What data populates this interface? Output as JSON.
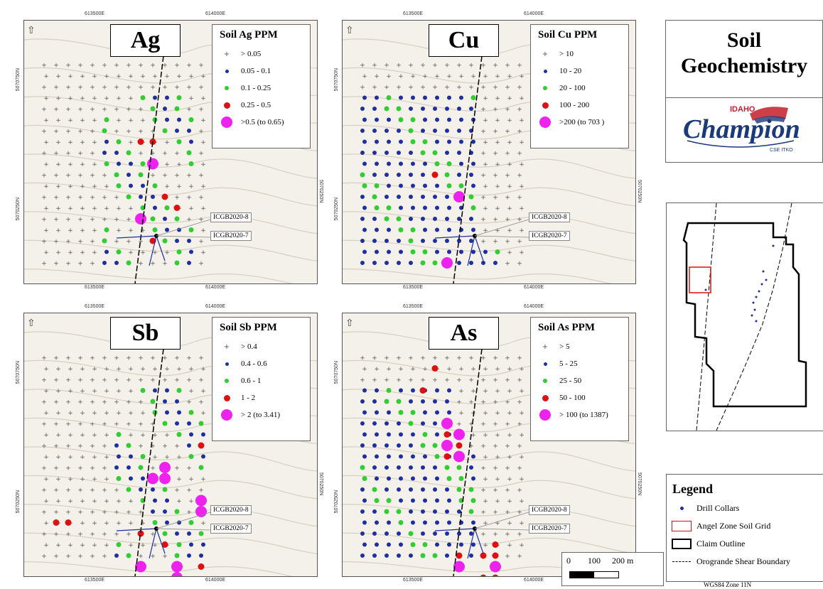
{
  "panels": [
    {
      "id": "ag",
      "element": "Ag",
      "legend_title": "Soil Ag PPM",
      "classes": [
        "> 0.05",
        "0.05 - 0.1",
        "0.1 - 0.25",
        "0.25 - 0.5",
        ">0.5 (to 0.65)"
      ],
      "drills": [
        "ICGB2020-8",
        "ICGB2020-7"
      ],
      "top_coords": [
        "613500E",
        "614000E"
      ],
      "bottom_coords": [
        "613500E",
        "614000E"
      ],
      "left_coords": [
        "5070750N",
        "5070250N"
      ],
      "right_coords": [
        "5070250N"
      ]
    },
    {
      "id": "cu",
      "element": "Cu",
      "legend_title": "Soil Cu PPM",
      "classes": [
        "> 10",
        "10 - 20",
        "20 - 100",
        "100 - 200",
        ">200 (to 703 )"
      ],
      "drills": [
        "ICGB2020-8",
        "ICGB2020-7"
      ],
      "top_coords": [
        "613500E",
        "614000E"
      ],
      "bottom_coords": [
        "613500E",
        "614000E"
      ],
      "left_coords": [
        "5070750N",
        "5070250N"
      ],
      "right_coords": [
        "5070250N"
      ]
    },
    {
      "id": "sb",
      "element": "Sb",
      "legend_title": "Soil Sb PPM",
      "classes": [
        "> 0.4",
        "0.4 - 0.6",
        "0.6 - 1",
        "1 - 2",
        "> 2 (to 3.41)"
      ],
      "drills": [
        "ICGB2020-8",
        "ICGB2020-7"
      ],
      "top_coords": [
        "613500E",
        "614000E"
      ],
      "bottom_coords": [
        "613500E",
        "614000E"
      ],
      "left_coords": [
        "5070750N",
        "5070250N"
      ],
      "right_coords": [
        "5070250N"
      ]
    },
    {
      "id": "as",
      "element": "As",
      "legend_title": "Soil As PPM",
      "classes": [
        "> 5",
        "5 - 25",
        "25 - 50",
        "50 - 100",
        "> 100 (to 1387)"
      ],
      "drills": [
        "ICGB2020-8",
        "ICGB2020-7"
      ],
      "top_coords": [
        "613500E",
        "614000E"
      ],
      "bottom_coords": [
        "613500E",
        "614000E"
      ],
      "left_coords": [
        "5070750N",
        "5070250N"
      ],
      "right_coords": [
        "5070250N"
      ]
    }
  ],
  "title": {
    "line1": "Soil",
    "line2": "Geochemistry"
  },
  "logo": {
    "top": "IDAHO",
    "main": "Champion",
    "sub": "CSE ITKO"
  },
  "legend": {
    "title": "Legend",
    "items": [
      "Drill Collars",
      "Angel Zone Soil Grid",
      "Claim Outline",
      "Orogrande Shear Boundary"
    ]
  },
  "scalebar": {
    "labels": [
      "0",
      "100",
      "200 m"
    ]
  },
  "projection": "WGS84 Zone 11N",
  "colors": {
    "class0": "#777777",
    "class1": "#1f2f9e",
    "class2": "#33cc33",
    "class3": "#dd1111",
    "class4": "#ee22ee",
    "map_bg": "#f3f1ea",
    "contour": "#d9cfc0"
  }
}
